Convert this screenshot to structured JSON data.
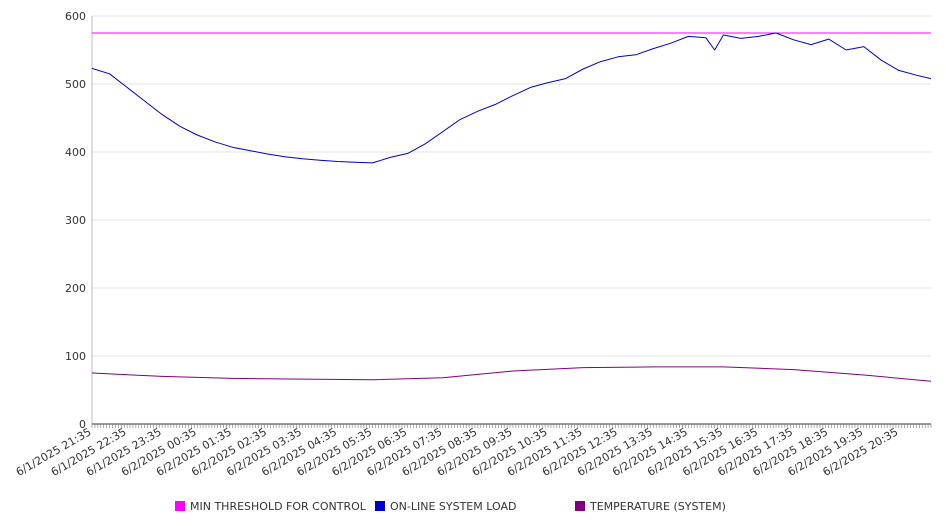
{
  "chart_data": {
    "type": "line",
    "title": "",
    "xlabel": "",
    "ylabel": "",
    "ylim": [
      0,
      600
    ],
    "yticks": [
      "0",
      "100",
      "200",
      "300",
      "400",
      "500",
      "600"
    ],
    "grid": true,
    "legend_position": "bottom",
    "x_tick_labels": [
      "6/1/2025 21:35",
      "6/1/2025 22:35",
      "6/1/2025 23:35",
      "6/2/2025 00:35",
      "6/2/2025 01:35",
      "6/2/2025 02:35",
      "6/2/2025 03:35",
      "6/2/2025 04:35",
      "6/2/2025 05:35",
      "6/2/2025 06:35",
      "6/2/2025 07:35",
      "6/2/2025 08:35",
      "6/2/2025 09:35",
      "6/2/2025 10:35",
      "6/2/2025 11:35",
      "6/2/2025 12:35",
      "6/2/2025 13:35",
      "6/2/2025 14:35",
      "6/2/2025 15:35",
      "6/2/2025 16:35",
      "6/2/2025 17:35",
      "6/2/2025 18:35",
      "6/2/2025 19:35",
      "6/2/2025 20:35"
    ],
    "series": [
      {
        "name": "MIN THRESHOLD FOR CONTROL",
        "color": "#ff00ff",
        "x": [
          "6/1/2025 21:35",
          "6/2/2025 21:30"
        ],
        "values": [
          575,
          575
        ]
      },
      {
        "name": "ON-LINE SYSTEM LOAD",
        "color": "#0000cc",
        "x": [
          "6/1/2025 21:35",
          "6/1/2025 22:05",
          "6/1/2025 22:35",
          "6/1/2025 23:05",
          "6/1/2025 23:35",
          "6/2/2025 00:05",
          "6/2/2025 00:35",
          "6/2/2025 01:05",
          "6/2/2025 01:35",
          "6/2/2025 02:05",
          "6/2/2025 02:35",
          "6/2/2025 03:05",
          "6/2/2025 03:35",
          "6/2/2025 04:05",
          "6/2/2025 04:35",
          "6/2/2025 05:05",
          "6/2/2025 05:35",
          "6/2/2025 06:05",
          "6/2/2025 06:35",
          "6/2/2025 07:05",
          "6/2/2025 07:35",
          "6/2/2025 08:05",
          "6/2/2025 08:35",
          "6/2/2025 09:05",
          "6/2/2025 09:35",
          "6/2/2025 10:05",
          "6/2/2025 10:35",
          "6/2/2025 11:05",
          "6/2/2025 11:35",
          "6/2/2025 12:05",
          "6/2/2025 12:35",
          "6/2/2025 13:05",
          "6/2/2025 13:35",
          "6/2/2025 14:05",
          "6/2/2025 14:35",
          "6/2/2025 15:05",
          "6/2/2025 15:20",
          "6/2/2025 15:35",
          "6/2/2025 16:05",
          "6/2/2025 16:35",
          "6/2/2025 17:05",
          "6/2/2025 17:35",
          "6/2/2025 18:05",
          "6/2/2025 18:35",
          "6/2/2025 19:05",
          "6/2/2025 19:35",
          "6/2/2025 20:05",
          "6/2/2025 20:35",
          "6/2/2025 21:05",
          "6/2/2025 21:30"
        ],
        "values": [
          523,
          515,
          495,
          475,
          455,
          438,
          425,
          415,
          407,
          402,
          397,
          393,
          390,
          388,
          386,
          385,
          384,
          392,
          398,
          412,
          430,
          448,
          460,
          470,
          483,
          495,
          502,
          508,
          522,
          533,
          540,
          543,
          552,
          560,
          570,
          568,
          550,
          572,
          567,
          570,
          575,
          565,
          558,
          566,
          550,
          555,
          535,
          520,
          513,
          508
        ]
      },
      {
        "name": "TEMPERATURE (SYSTEM)",
        "color": "#800080",
        "x": [
          "6/1/2025 21:35",
          "6/1/2025 23:35",
          "6/2/2025 01:35",
          "6/2/2025 03:35",
          "6/2/2025 05:35",
          "6/2/2025 07:35",
          "6/2/2025 09:35",
          "6/2/2025 11:35",
          "6/2/2025 13:35",
          "6/2/2025 15:35",
          "6/2/2025 17:35",
          "6/2/2025 19:35",
          "6/2/2025 21:30"
        ],
        "values": [
          75,
          70,
          67,
          66,
          65,
          68,
          78,
          83,
          84,
          84,
          80,
          72,
          63
        ]
      }
    ]
  }
}
